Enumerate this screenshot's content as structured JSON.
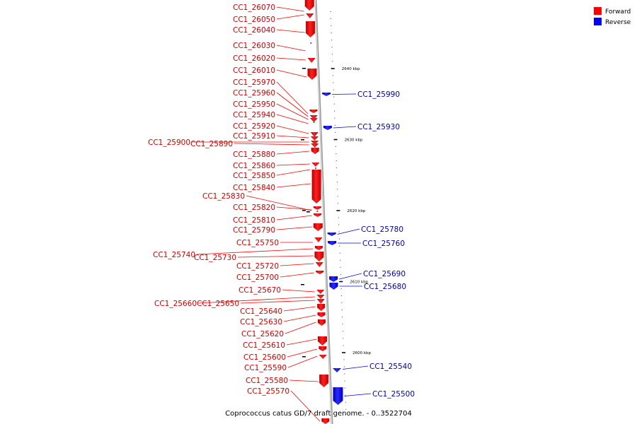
{
  "colors": {
    "forward": "#ff0000",
    "forward_label": "#cc0000",
    "reverse": "#0000ff",
    "reverse_label": "#0000aa",
    "backbone": "#888888"
  },
  "legend": [
    {
      "label": "Forward",
      "color": "#ff0000"
    },
    {
      "label": "Reverse",
      "color": "#0000ff"
    }
  ],
  "caption": "Coprococcus catus GD/7 draft genome. - 0..3522704",
  "ticks": [
    {
      "label": "2640 kbp",
      "kbp": 2640
    },
    {
      "label": "2630 kbp",
      "kbp": 2630
    },
    {
      "label": "2620 kbp",
      "kbp": 2620
    },
    {
      "label": "2610 kbp",
      "kbp": 2610
    },
    {
      "label": "2600 kbp",
      "kbp": 2600
    }
  ],
  "forward_genes": [
    "CC1_26070",
    "CC1_26050",
    "CC1_26040",
    "CC1_26030",
    "CC1_26020",
    "CC1_26010",
    "CC1_25970",
    "CC1_25960",
    "CC1_25950",
    "CC1_25940",
    "CC1_25920",
    "CC1_25910",
    "CC1_25900",
    "CC1_25890",
    "CC1_25880",
    "CC1_25860",
    "CC1_25850",
    "CC1_25840",
    "CC1_25830",
    "CC1_25820",
    "CC1_25810",
    "CC1_25790",
    "CC1_25750",
    "CC1_25740",
    "CC1_25730",
    "CC1_25720",
    "CC1_25700",
    "CC1_25670",
    "CC1_25660",
    "CC1_25650",
    "CC1_25640",
    "CC1_25630",
    "CC1_25620",
    "CC1_25610",
    "CC1_25600",
    "CC1_25590",
    "CC1_25580",
    "CC1_25570"
  ],
  "reverse_genes": [
    "CC1_25990",
    "CC1_25930",
    "CC1_25780",
    "CC1_25760",
    "CC1_25690",
    "CC1_25680",
    "CC1_25540",
    "CC1_25500"
  ]
}
